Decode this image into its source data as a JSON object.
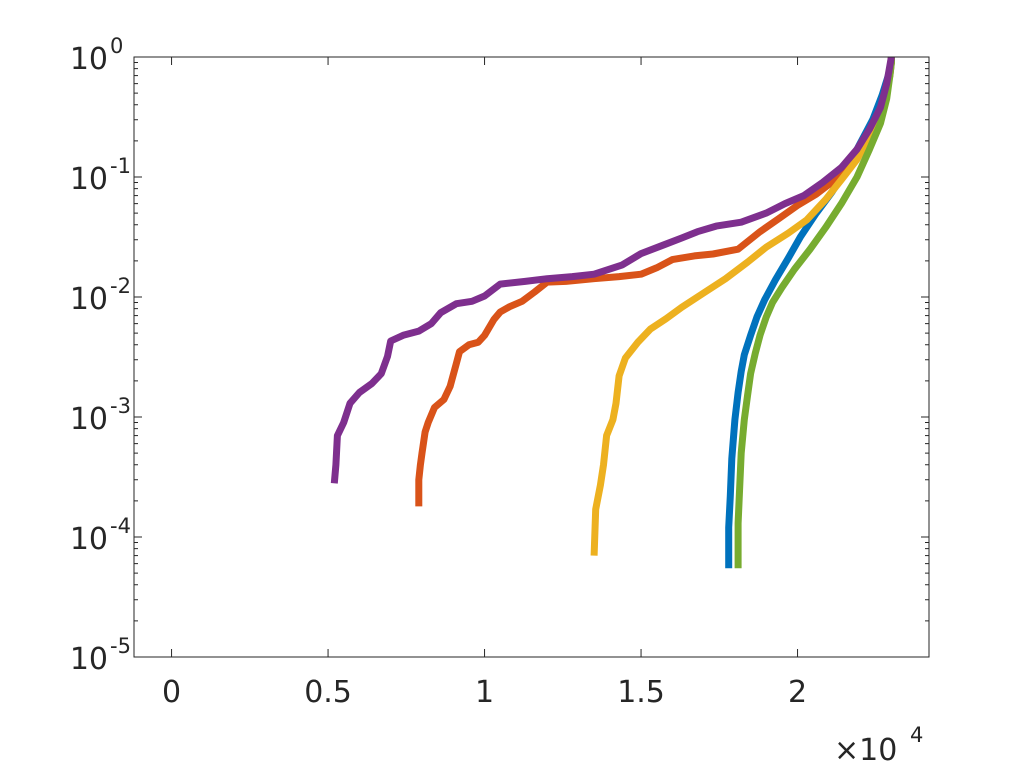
{
  "chart_data": {
    "type": "line",
    "title": "",
    "xlabel": "",
    "ylabel": "",
    "xscale": "linear",
    "yscale": "log",
    "xlim": [
      -1200,
      24200
    ],
    "ylim": [
      1e-05,
      1
    ],
    "x_multiplier_label": {
      "base": "×10",
      "exp": "4"
    },
    "x_ticks": [
      {
        "value": 0,
        "label": "0"
      },
      {
        "value": 5000,
        "label": "0.5"
      },
      {
        "value": 10000,
        "label": "1"
      },
      {
        "value": 15000,
        "label": "1.5"
      },
      {
        "value": 20000,
        "label": "2"
      }
    ],
    "y_ticks": [
      {
        "value": 1e-05,
        "base": "10",
        "exp": "-5"
      },
      {
        "value": 0.0001,
        "base": "10",
        "exp": "-4"
      },
      {
        "value": 0.001,
        "base": "10",
        "exp": "-3"
      },
      {
        "value": 0.01,
        "base": "10",
        "exp": "-2"
      },
      {
        "value": 0.1,
        "base": "10",
        "exp": "-1"
      },
      {
        "value": 1,
        "base": "10",
        "exp": "0"
      }
    ],
    "grid": false,
    "legend": "none",
    "series": [
      {
        "color": "#0072BD",
        "points": [
          [
            17800,
            5.5e-05
          ],
          [
            17800,
            0.00012
          ],
          [
            17850,
            0.00022
          ],
          [
            17900,
            0.00045
          ],
          [
            18000,
            0.00095
          ],
          [
            18100,
            0.0016
          ],
          [
            18200,
            0.0024
          ],
          [
            18300,
            0.0033
          ],
          [
            18500,
            0.0048
          ],
          [
            18700,
            0.0068
          ],
          [
            18950,
            0.0095
          ],
          [
            19300,
            0.014
          ],
          [
            19700,
            0.021
          ],
          [
            20100,
            0.032
          ],
          [
            20600,
            0.05
          ],
          [
            21100,
            0.075
          ],
          [
            21600,
            0.12
          ],
          [
            22000,
            0.19
          ],
          [
            22400,
            0.3
          ],
          [
            22700,
            0.48
          ],
          [
            22900,
            0.7
          ],
          [
            23000,
            0.9
          ],
          [
            23000,
            1.0
          ]
        ]
      },
      {
        "color": "#D95319",
        "points": [
          [
            7900,
            0.00018
          ],
          [
            7900,
            0.0003
          ],
          [
            7950,
            0.0004
          ],
          [
            8000,
            0.0005
          ],
          [
            8100,
            0.00075
          ],
          [
            8200,
            0.0009
          ],
          [
            8400,
            0.0012
          ],
          [
            8700,
            0.0014
          ],
          [
            8900,
            0.0018
          ],
          [
            9100,
            0.0028
          ],
          [
            9200,
            0.0035
          ],
          [
            9500,
            0.004
          ],
          [
            9800,
            0.0042
          ],
          [
            10000,
            0.0048
          ],
          [
            10300,
            0.0065
          ],
          [
            10500,
            0.0075
          ],
          [
            10800,
            0.0083
          ],
          [
            11200,
            0.0092
          ],
          [
            11600,
            0.011
          ],
          [
            12000,
            0.0133
          ],
          [
            12600,
            0.0135
          ],
          [
            13500,
            0.0142
          ],
          [
            14300,
            0.0148
          ],
          [
            15000,
            0.0155
          ],
          [
            15500,
            0.0175
          ],
          [
            16000,
            0.0205
          ],
          [
            16700,
            0.022
          ],
          [
            17300,
            0.0228
          ],
          [
            18100,
            0.025
          ],
          [
            18800,
            0.035
          ],
          [
            19400,
            0.045
          ],
          [
            20000,
            0.058
          ],
          [
            20600,
            0.072
          ],
          [
            21200,
            0.095
          ],
          [
            21700,
            0.13
          ],
          [
            22100,
            0.19
          ],
          [
            22500,
            0.3
          ],
          [
            22800,
            0.48
          ],
          [
            22950,
            0.7
          ],
          [
            23000,
            0.9
          ],
          [
            23000,
            1.0
          ]
        ]
      },
      {
        "color": "#EDB120",
        "points": [
          [
            13500,
            7e-05
          ],
          [
            13550,
            0.00017
          ],
          [
            13700,
            0.00027
          ],
          [
            13800,
            0.0004
          ],
          [
            13900,
            0.0007
          ],
          [
            14100,
            0.00095
          ],
          [
            14200,
            0.0013
          ],
          [
            14300,
            0.0022
          ],
          [
            14500,
            0.0031
          ],
          [
            14900,
            0.0042
          ],
          [
            15300,
            0.0054
          ],
          [
            15800,
            0.0066
          ],
          [
            16300,
            0.0082
          ],
          [
            17000,
            0.0108
          ],
          [
            17700,
            0.0142
          ],
          [
            18400,
            0.0195
          ],
          [
            19000,
            0.026
          ],
          [
            19700,
            0.034
          ],
          [
            20300,
            0.044
          ],
          [
            20900,
            0.065
          ],
          [
            21400,
            0.095
          ],
          [
            21900,
            0.14
          ],
          [
            22300,
            0.22
          ],
          [
            22650,
            0.35
          ],
          [
            22850,
            0.55
          ],
          [
            22950,
            0.8
          ],
          [
            23000,
            1.0
          ]
        ]
      },
      {
        "color": "#77AC30",
        "points": [
          [
            18100,
            5.5e-05
          ],
          [
            18100,
            0.00013
          ],
          [
            18150,
            0.00025
          ],
          [
            18200,
            0.0005
          ],
          [
            18300,
            0.00095
          ],
          [
            18400,
            0.0015
          ],
          [
            18500,
            0.0023
          ],
          [
            18650,
            0.0034
          ],
          [
            18800,
            0.0048
          ],
          [
            19000,
            0.0068
          ],
          [
            19200,
            0.009
          ],
          [
            19500,
            0.012
          ],
          [
            19900,
            0.017
          ],
          [
            20400,
            0.025
          ],
          [
            20900,
            0.038
          ],
          [
            21400,
            0.06
          ],
          [
            21900,
            0.1
          ],
          [
            22300,
            0.17
          ],
          [
            22650,
            0.28
          ],
          [
            22850,
            0.45
          ],
          [
            22950,
            0.7
          ],
          [
            23000,
            0.9
          ],
          [
            23000,
            1.0
          ]
        ]
      },
      {
        "color": "#7E2F8E",
        "points": [
          [
            5200,
            0.00028
          ],
          [
            5250,
            0.0004
          ],
          [
            5300,
            0.0007
          ],
          [
            5500,
            0.0009
          ],
          [
            5700,
            0.0013
          ],
          [
            6000,
            0.0016
          ],
          [
            6400,
            0.0019
          ],
          [
            6700,
            0.0023
          ],
          [
            6900,
            0.0032
          ],
          [
            7000,
            0.0043
          ],
          [
            7400,
            0.0048
          ],
          [
            7900,
            0.0052
          ],
          [
            8300,
            0.006
          ],
          [
            8600,
            0.0074
          ],
          [
            9100,
            0.0088
          ],
          [
            9600,
            0.0092
          ],
          [
            10000,
            0.0102
          ],
          [
            10500,
            0.0128
          ],
          [
            11300,
            0.0135
          ],
          [
            12000,
            0.0142
          ],
          [
            12800,
            0.0148
          ],
          [
            13500,
            0.0155
          ],
          [
            14400,
            0.0185
          ],
          [
            15000,
            0.023
          ],
          [
            15700,
            0.027
          ],
          [
            16300,
            0.031
          ],
          [
            16800,
            0.035
          ],
          [
            17400,
            0.039
          ],
          [
            18200,
            0.042
          ],
          [
            19000,
            0.05
          ],
          [
            19600,
            0.06
          ],
          [
            20200,
            0.07
          ],
          [
            20800,
            0.09
          ],
          [
            21400,
            0.12
          ],
          [
            21900,
            0.17
          ],
          [
            22300,
            0.25
          ],
          [
            22650,
            0.38
          ],
          [
            22850,
            0.6
          ],
          [
            22950,
            0.85
          ],
          [
            23000,
            1.0
          ]
        ]
      }
    ]
  }
}
